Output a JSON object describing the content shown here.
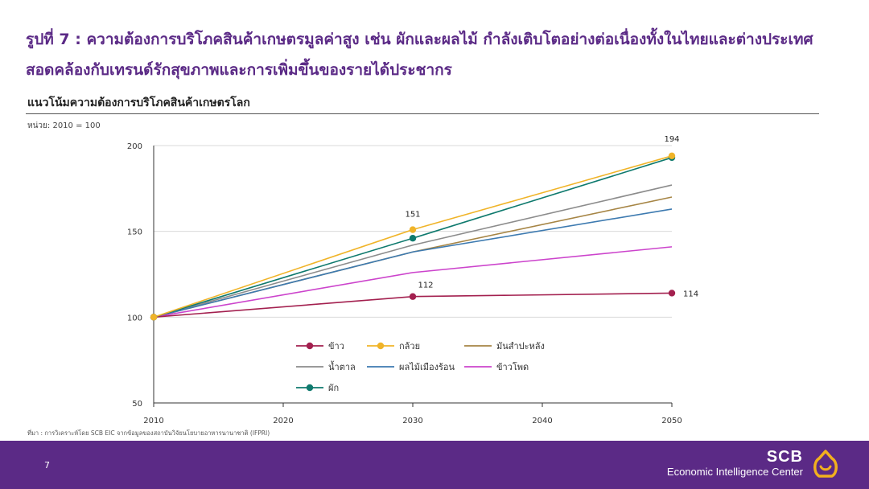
{
  "page": {
    "title": "รูปที่ 7 : ความต้องการบริโภคสินค้าเกษตรมูลค่าสูง เช่น ผักและผลไม้ กำลังเติบโตอย่างต่อเนื่องทั้งในไทยและต่างประเทศ สอดคล้องกับเทรนด์รักสุขภาพและการเพิ่มขึ้นของรายได้ประชากร",
    "unit_label": "หน่วย: 2010 = 100",
    "source": "ที่มา : การวิเคราะห์โดย SCB EIC จากข้อมูลของสถาบันวิจัยนโยบายอาหารนานาชาติ (IFPRI)",
    "page_number": "7",
    "brand_name": "SCB",
    "brand_sub": "Economic Intelligence Center",
    "colors": {
      "accent": "#5b2a86",
      "logo": "#f2b01e"
    }
  },
  "chart_data": {
    "type": "line",
    "title": "แนวโน้มความต้องการบริโภคสินค้าเกษตรโลก",
    "x": [
      2010,
      2030,
      2050
    ],
    "xticks": [
      "2010",
      "2020",
      "2030",
      "2040",
      "2050"
    ],
    "xlim": [
      2010,
      2050
    ],
    "yticks": [
      "50",
      "100",
      "150",
      "200"
    ],
    "ylim": [
      50,
      200
    ],
    "grid": "horizontal",
    "legend_position": "inside-bottom-center",
    "series": [
      {
        "name": "ข้าว",
        "values": [
          100,
          112,
          114
        ],
        "color": "#a3204f",
        "markers": true
      },
      {
        "name": "กล้วย",
        "values": [
          100,
          151,
          194
        ],
        "color": "#f0b429",
        "markers": true
      },
      {
        "name": "มันสำปะหลัง",
        "values": [
          100,
          138,
          170
        ],
        "color": "#a68545",
        "markers": false
      },
      {
        "name": "น้ำตาล",
        "values": [
          100,
          142,
          177
        ],
        "color": "#8c8c8c",
        "markers": false
      },
      {
        "name": "ผลไม้เมืองร้อน",
        "values": [
          100,
          138,
          163
        ],
        "color": "#3d7ab0",
        "markers": false
      },
      {
        "name": "ข้าวโพด",
        "values": [
          100,
          126,
          141
        ],
        "color": "#cc44cc",
        "markers": false
      },
      {
        "name": "ผัก",
        "values": [
          100,
          146,
          193
        ],
        "color": "#0f7a6e",
        "markers": true
      }
    ],
    "data_labels": [
      {
        "series": 1,
        "point": 2,
        "text": "194"
      },
      {
        "series": 1,
        "point": 1,
        "text": "151"
      },
      {
        "series": 0,
        "point": 1,
        "text": "112"
      },
      {
        "series": 0,
        "point": 2,
        "text": "114"
      }
    ]
  }
}
